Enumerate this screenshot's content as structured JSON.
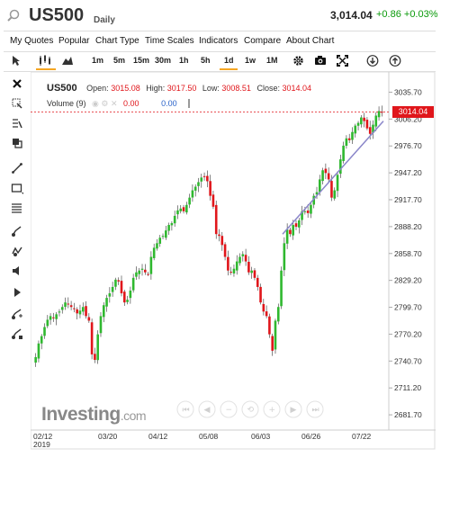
{
  "header": {
    "symbol": "US500",
    "period": "Daily",
    "last_price": "3,014.04",
    "change": "+0.86 +0.03%"
  },
  "menu": {
    "items": [
      "My Quotes",
      "Popular",
      "Chart Type",
      "Time Scales",
      "Indicators",
      "Compare",
      "About Chart"
    ]
  },
  "toolbar": {
    "timeframes": [
      "1m",
      "5m",
      "15m",
      "30m",
      "1h",
      "5h",
      "1d",
      "1w",
      "1M"
    ],
    "selected_timeframe": "1d"
  },
  "legend": {
    "symbol": "US500",
    "open_label": "Open:",
    "open": "3015.08",
    "high_label": "High:",
    "high": "3017.50",
    "low_label": "Low:",
    "low": "3008.51",
    "close_label": "Close:",
    "close": "3014.04",
    "volume_label": "Volume (9)",
    "volume_value1": "0.00",
    "volume_value2": "0.00"
  },
  "price_badge": "3014.04",
  "logo": {
    "main": "Investing",
    "suffix": ".com"
  },
  "colors": {
    "up": "#2fb82f",
    "down": "#e0161b",
    "trendline": "#8a86c9",
    "accent": "#f5a623"
  },
  "chart_data": {
    "type": "candlestick",
    "y_axis_ticks": [
      3035.7,
      3006.2,
      2976.7,
      2947.2,
      2917.7,
      2888.2,
      2858.7,
      2829.2,
      2799.7,
      2770.2,
      2740.7,
      2711.2,
      2681.7
    ],
    "x_axis_ticks": [
      "02/12\n2019",
      "03/20",
      "04/12",
      "05/08",
      "06/03",
      "06/26",
      "07/22"
    ],
    "ylim": [
      2665,
      3048
    ],
    "closes": [
      2745,
      2760,
      2768,
      2778,
      2786,
      2790,
      2788,
      2792,
      2795,
      2800,
      2805,
      2803,
      2800,
      2798,
      2793,
      2796,
      2800,
      2790,
      2785,
      2748,
      2742,
      2770,
      2790,
      2802,
      2810,
      2815,
      2822,
      2830,
      2828,
      2815,
      2805,
      2808,
      2818,
      2832,
      2838,
      2840,
      2842,
      2838,
      2836,
      2855,
      2865,
      2870,
      2876,
      2878,
      2884,
      2890,
      2892,
      2900,
      2906,
      2908,
      2905,
      2912,
      2920,
      2928,
      2932,
      2937,
      2942,
      2943,
      2938,
      2922,
      2910,
      2880,
      2878,
      2868,
      2855,
      2840,
      2838,
      2842,
      2850,
      2855,
      2858,
      2850,
      2838,
      2840,
      2832,
      2822,
      2805,
      2795,
      2790,
      2770,
      2752,
      2785,
      2800,
      2840,
      2870,
      2885,
      2880,
      2890,
      2888,
      2895,
      2905,
      2905,
      2903,
      2912,
      2922,
      2926,
      2940,
      2950,
      2947,
      2940,
      2920,
      2928,
      2945,
      2962,
      2977,
      2985,
      2983,
      2992,
      2999,
      3002,
      3008,
      3004,
      2996,
      2990,
      3000,
      3010,
      3015,
      3014
    ]
  }
}
